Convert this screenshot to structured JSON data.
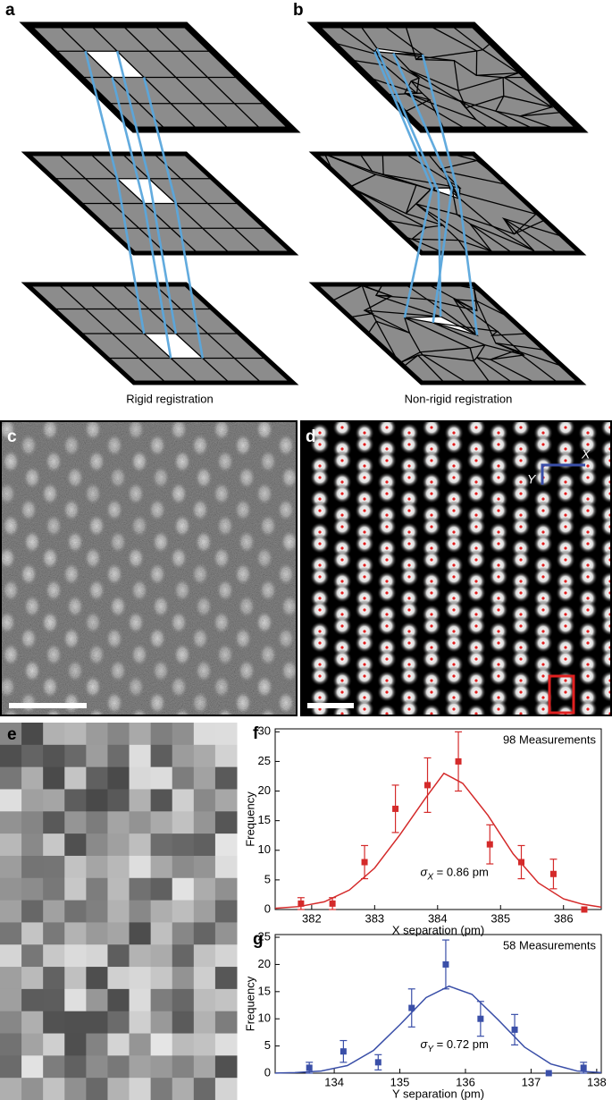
{
  "panel_a": {
    "label": "a",
    "caption": "Rigid registration"
  },
  "panel_b": {
    "label": "b",
    "caption": "Non-rigid registration"
  },
  "panel_c": {
    "label": "c"
  },
  "panel_d": {
    "label": "d",
    "axis_x": "X",
    "axis_y": "Y"
  },
  "panel_e": {
    "label": "e"
  },
  "chart_data": [
    {
      "type": "scatter",
      "panel_label": "f",
      "xlabel": "X separation (pm)",
      "ylabel": "Frequency",
      "annotation": "98 Measurements",
      "sigma_label": [
        "σ",
        "X",
        " = 0.86 pm"
      ],
      "xlim": [
        381.42,
        386.6
      ],
      "ylim": [
        0,
        30.5
      ],
      "xticks": [
        382,
        383,
        384,
        385,
        386
      ],
      "yticks": [
        0,
        5,
        10,
        15,
        20,
        25,
        30
      ],
      "points": {
        "color": "#d42a2a",
        "x": [
          381.83,
          382.33,
          382.84,
          383.33,
          383.84,
          384.33,
          384.83,
          385.33,
          385.84,
          386.33
        ],
        "values": [
          1,
          1,
          8,
          17,
          21,
          25,
          11,
          8,
          6,
          0
        ],
        "errors": [
          1,
          1,
          2.8,
          4,
          4.6,
          5,
          3.3,
          2.8,
          2.5,
          0
        ]
      },
      "fit": {
        "color": "#d42a2a",
        "x": [
          381.42,
          381.8,
          382.2,
          382.6,
          383.0,
          383.4,
          383.8,
          384.1,
          384.4,
          384.8,
          385.2,
          385.6,
          386.0,
          386.3,
          386.6
        ],
        "values": [
          0.2,
          0.5,
          1.3,
          3.3,
          7.0,
          12.6,
          18.7,
          23.0,
          21.3,
          15.9,
          9.4,
          4.5,
          1.8,
          0.9,
          0.4
        ]
      }
    },
    {
      "type": "scatter",
      "panel_label": "g",
      "xlabel": "Y separation (pm)",
      "ylabel": "Frequency",
      "annotation": "58 Measurements",
      "sigma_label": [
        "σ",
        "Y",
        " = 0.72 pm"
      ],
      "xlim": [
        133.1,
        138.07
      ],
      "ylim": [
        0,
        25.5
      ],
      "xticks": [
        134,
        135,
        136,
        137,
        138
      ],
      "yticks": [
        0,
        5,
        10,
        15,
        20,
        25
      ],
      "points": {
        "color": "#3a4fa8",
        "x": [
          133.62,
          134.14,
          134.67,
          135.18,
          135.7,
          136.23,
          136.75,
          137.27,
          137.8
        ],
        "values": [
          1,
          4,
          2,
          12,
          20,
          10,
          8,
          0,
          1
        ],
        "errors": [
          1,
          2,
          1.4,
          3.5,
          4.5,
          3.2,
          2.8,
          0,
          1
        ]
      },
      "fit": {
        "color": "#3a4fa8",
        "x": [
          133.1,
          133.4,
          133.8,
          134.2,
          134.6,
          135.0,
          135.4,
          135.75,
          136.1,
          136.5,
          136.9,
          137.3,
          137.7,
          138.07
        ],
        "values": [
          0.02,
          0.1,
          0.4,
          1.4,
          4.2,
          8.9,
          13.9,
          16.0,
          14.5,
          9.8,
          4.8,
          1.7,
          0.4,
          0.1
        ]
      }
    }
  ]
}
